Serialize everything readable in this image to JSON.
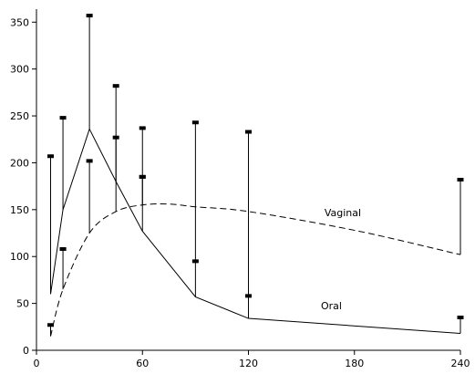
{
  "chart_data": {
    "type": "line",
    "title": "",
    "xlabel": "",
    "ylabel": "",
    "xlim": [
      0,
      240
    ],
    "ylim": [
      0,
      360
    ],
    "xticks": [
      0,
      60,
      120,
      180,
      240
    ],
    "yticks": [
      0,
      50,
      100,
      150,
      200,
      250,
      300,
      350
    ],
    "grid": false,
    "series": [
      {
        "name": "Oral",
        "style": "solid",
        "smooth": false,
        "x": [
          8,
          15,
          30,
          45,
          60,
          90,
          120,
          240
        ],
        "y": [
          60,
          150,
          236,
          180,
          127,
          57,
          34,
          18
        ],
        "error_upper": [
          207,
          248,
          357,
          282,
          237,
          243,
          233,
          35
        ],
        "error_marker": [
          null,
          108,
          null,
          null,
          185,
          95,
          58,
          null
        ]
      },
      {
        "name": "Vaginal",
        "style": "dashed",
        "smooth": true,
        "x": [
          8,
          15,
          30,
          45,
          60,
          75,
          90,
          120,
          180,
          240
        ],
        "y": [
          15,
          65,
          125,
          148,
          155,
          156,
          153,
          148,
          128,
          102
        ],
        "error_upper": [
          27,
          108,
          202,
          227,
          185,
          null,
          null,
          null,
          null,
          182
        ],
        "error_marker": [
          null,
          null,
          null,
          null,
          null,
          null,
          null,
          null,
          null,
          null
        ]
      }
    ],
    "labels": [
      {
        "text": "Vaginal",
        "x": 163,
        "y": 143
      },
      {
        "text": "Oral",
        "x": 161,
        "y": 44
      }
    ]
  }
}
